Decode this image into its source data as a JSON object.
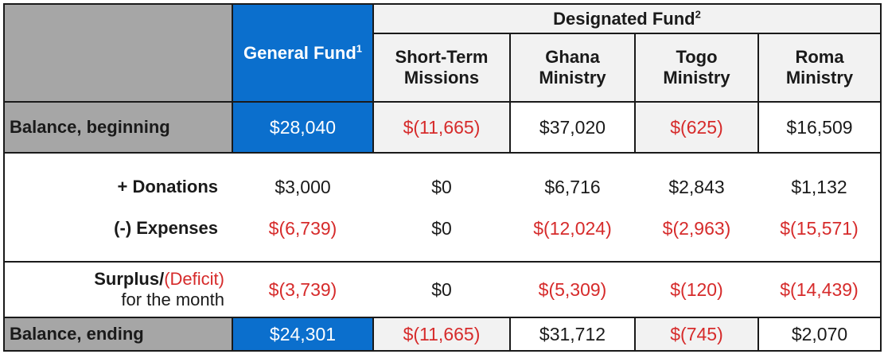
{
  "header": {
    "designated_fund": "Designated Fund",
    "designated_sup": "2",
    "general_fund": "General Fund",
    "general_sup": "1",
    "columns": [
      {
        "line1": "Short-Term",
        "line2": "Missions"
      },
      {
        "line1": "Ghana",
        "line2": "Ministry"
      },
      {
        "line1": "Togo",
        "line2": "Ministry"
      },
      {
        "line1": "Roma",
        "line2": "Ministry"
      }
    ]
  },
  "rows": {
    "beginning": {
      "label": "Balance, beginning",
      "values": [
        "$28,040",
        "$(11,665)",
        "$37,020",
        "$(625)",
        "$16,509"
      ]
    },
    "donations": {
      "label": "+  Donations",
      "values": [
        "$3,000",
        "$0",
        "$6,716",
        "$2,843",
        "$1,132"
      ]
    },
    "expenses": {
      "label": "(-)  Expenses",
      "values": [
        "$(6,739)",
        "$0",
        "$(12,024)",
        "$(2,963)",
        "$(15,571)"
      ]
    },
    "surplus": {
      "label_a": "Surplus/",
      "label_b": "(Deficit)",
      "label_c": "for the month",
      "values": [
        "$(3,739)",
        "$0",
        "$(5,309)",
        "$(120)",
        "$(14,439)"
      ]
    },
    "ending": {
      "label": "Balance, ending",
      "values": [
        "$24,301",
        "$(11,665)",
        "$31,712",
        "$(745)",
        "$2,070"
      ]
    }
  },
  "colors": {
    "blue": "#0b6fcd",
    "gray": "#a6a6a6",
    "light": "#f2f2f2",
    "negative": "#d62b2b"
  }
}
